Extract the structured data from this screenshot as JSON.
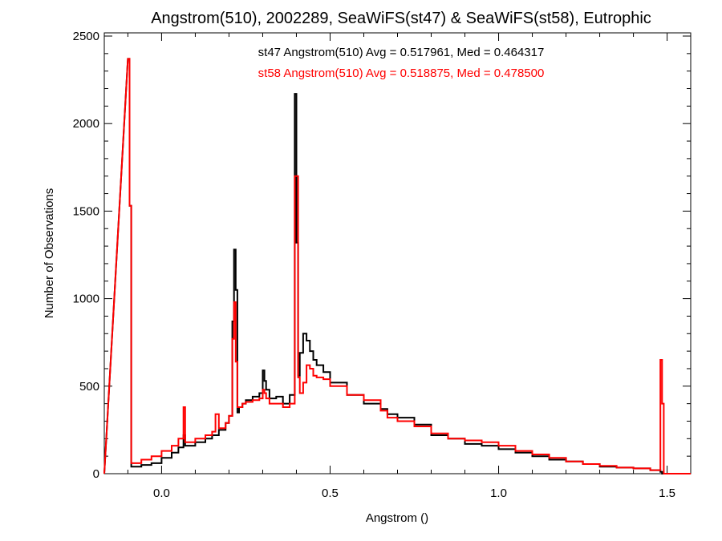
{
  "chart_data": {
    "type": "line",
    "title": "Angstrom(510), 2002289, SeaWiFS(st47) & SeaWiFS(st58), Eutrophic",
    "xlabel": "Angstrom ()",
    "ylabel": "Number of Observations",
    "xlim": [
      -0.17,
      1.57
    ],
    "ylim": [
      0,
      2500
    ],
    "xticks": [
      0.0,
      0.5,
      1.0,
      1.5
    ],
    "xtick_labels": [
      "0.0",
      "0.5",
      "1.0",
      "1.5"
    ],
    "yticks": [
      0,
      500,
      1000,
      1500,
      2000,
      2500
    ],
    "ytick_labels": [
      "0",
      "500",
      "1000",
      "1500",
      "2000",
      "2500"
    ],
    "grid": false,
    "annotations": [
      {
        "text": "st47 Angstrom(510) Avg = 0.517961, Med = 0.464317",
        "color": "#000000"
      },
      {
        "text": "st58 Angstrom(510) Avg = 0.518875, Med = 0.478500",
        "color": "#ff0000"
      }
    ],
    "series": [
      {
        "color": "#000000",
        "x": [
          -0.1,
          -0.095,
          -0.09,
          -0.06,
          -0.03,
          0.0,
          0.03,
          0.05,
          0.065,
          0.07,
          0.1,
          0.13,
          0.15,
          0.17,
          0.19,
          0.2,
          0.21,
          0.215,
          0.22,
          0.225,
          0.23,
          0.24,
          0.25,
          0.27,
          0.29,
          0.3,
          0.305,
          0.31,
          0.32,
          0.34,
          0.36,
          0.38,
          0.395,
          0.4,
          0.405,
          0.41,
          0.42,
          0.43,
          0.44,
          0.45,
          0.46,
          0.48,
          0.5,
          0.55,
          0.6,
          0.65,
          0.67,
          0.7,
          0.75,
          0.8,
          0.85,
          0.9,
          0.95,
          1.0,
          1.05,
          1.1,
          1.15,
          1.2,
          1.25,
          1.3,
          1.35,
          1.4,
          1.45,
          1.48,
          1.485,
          1.49,
          1.5
        ],
        "values": [
          2370,
          1530,
          40,
          50,
          60,
          90,
          120,
          150,
          220,
          160,
          180,
          200,
          220,
          250,
          290,
          330,
          870,
          1280,
          1050,
          350,
          380,
          400,
          420,
          440,
          460,
          590,
          530,
          480,
          430,
          440,
          400,
          450,
          2170,
          1320,
          560,
          690,
          800,
          760,
          700,
          650,
          620,
          580,
          520,
          450,
          400,
          370,
          340,
          320,
          280,
          220,
          200,
          170,
          160,
          140,
          120,
          100,
          80,
          70,
          55,
          40,
          35,
          30,
          20,
          10,
          0,
          0,
          0
        ]
      },
      {
        "color": "#ff0000",
        "x": [
          -0.1,
          -0.095,
          -0.09,
          -0.06,
          -0.03,
          0.0,
          0.03,
          0.05,
          0.065,
          0.07,
          0.1,
          0.13,
          0.15,
          0.16,
          0.17,
          0.19,
          0.2,
          0.21,
          0.215,
          0.22,
          0.225,
          0.23,
          0.24,
          0.25,
          0.27,
          0.29,
          0.3,
          0.305,
          0.31,
          0.32,
          0.34,
          0.36,
          0.38,
          0.395,
          0.4,
          0.405,
          0.41,
          0.42,
          0.43,
          0.44,
          0.45,
          0.46,
          0.48,
          0.5,
          0.55,
          0.6,
          0.65,
          0.67,
          0.7,
          0.75,
          0.8,
          0.85,
          0.9,
          0.95,
          1.0,
          1.05,
          1.1,
          1.15,
          1.2,
          1.25,
          1.3,
          1.35,
          1.4,
          1.45,
          1.48,
          1.485,
          1.49,
          1.5
        ],
        "values": [
          2370,
          1530,
          60,
          80,
          100,
          130,
          160,
          200,
          380,
          180,
          200,
          220,
          240,
          340,
          260,
          290,
          330,
          770,
          980,
          640,
          380,
          380,
          400,
          410,
          420,
          430,
          480,
          460,
          430,
          400,
          400,
          380,
          400,
          1700,
          1700,
          550,
          460,
          520,
          620,
          600,
          560,
          550,
          540,
          500,
          450,
          420,
          360,
          320,
          300,
          270,
          230,
          200,
          190,
          180,
          160,
          130,
          110,
          90,
          70,
          55,
          45,
          35,
          30,
          20,
          650,
          400,
          0,
          0
        ]
      }
    ]
  }
}
